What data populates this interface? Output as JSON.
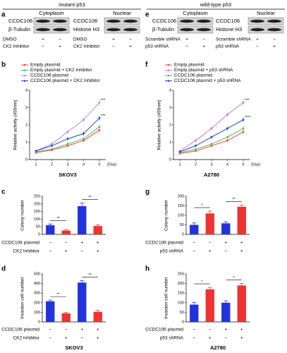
{
  "headers": [
    "mutant p53",
    "wild-type p53"
  ],
  "panel_letters": [
    "a",
    "b",
    "c",
    "d",
    "e",
    "f",
    "g",
    "h"
  ],
  "blots": [
    {
      "fractions": [
        "Cytoplasm",
        "Nuclear"
      ],
      "rows_left": [
        "CCDC106",
        "β-Tubulin"
      ],
      "rows_right": [
        "CCDC106",
        "Histone H3"
      ],
      "treatments": [
        {
          "name": "DMSO",
          "signs": [
            "+",
            "−"
          ]
        },
        {
          "name": "CK2 Inhibitor",
          "signs": [
            "−",
            "+"
          ]
        }
      ]
    },
    {
      "fractions": [
        "Cytoplasm",
        "Nuclear"
      ],
      "rows_left": [
        "CCDC106",
        "β-Tubulin"
      ],
      "rows_right": [
        "CCDC106",
        "Histone H3"
      ],
      "treatments": [
        {
          "name": "Scramble shRNA",
          "signs": [
            "+",
            "−"
          ]
        },
        {
          "name": "p53 shRNA",
          "signs": [
            "−",
            "+"
          ]
        }
      ]
    }
  ],
  "chart_data": [
    {
      "type": "line",
      "title": "SKOV3",
      "y_label": "Relative activity (450nm)",
      "x_label": "(Day)",
      "x": [
        1,
        2,
        3,
        4,
        5
      ],
      "xlim": [
        0.6,
        5.4
      ],
      "xticks": [
        1,
        2,
        3,
        4,
        5
      ],
      "ylim": [
        0,
        4
      ],
      "yticks": [
        0,
        1,
        2,
        3,
        4
      ],
      "series": [
        {
          "name": "Empty plasmid",
          "color": "#ee4444",
          "values": [
            0.4,
            0.55,
            0.8,
            1.1,
            1.7
          ],
          "errors": [
            0.05,
            0.06,
            0.08,
            0.1,
            0.12
          ]
        },
        {
          "name": "Empty plasmid + CK2 Inhibitor",
          "color": "#55bb55",
          "values": [
            0.45,
            0.6,
            0.9,
            1.2,
            1.9
          ],
          "errors": [
            0.05,
            0.06,
            0.08,
            0.1,
            0.12
          ]
        },
        {
          "name": "CCDC106 plasmid",
          "color": "#b08ee8",
          "values": [
            0.5,
            0.9,
            1.6,
            2.3,
            3.3
          ],
          "errors": [
            0.06,
            0.1,
            0.12,
            0.15,
            0.2
          ]
        },
        {
          "name": "CCDC106 plasmid + CK2 Inhibitor",
          "color": "#2244cc",
          "values": [
            0.5,
            0.8,
            1.2,
            1.5,
            2.4
          ],
          "errors": [
            0.05,
            0.08,
            0.1,
            0.12,
            0.15
          ]
        }
      ],
      "annotations": [
        "***",
        "***"
      ]
    },
    {
      "type": "bar",
      "y_label": "Colony number",
      "ylim": [
        0,
        250
      ],
      "yticks": [
        0,
        50,
        100,
        150,
        200,
        250
      ],
      "values": [
        60,
        25,
        185,
        55
      ],
      "errors": [
        8,
        5,
        20,
        8
      ],
      "colors": [
        "#2233dd",
        "#ee3333",
        "#2233dd",
        "#ee3333"
      ],
      "rows": [
        {
          "name": "CCDC106 plasmid",
          "signs": [
            "−",
            "−",
            "+",
            "+"
          ]
        },
        {
          "name": "CK2 Inhibitor",
          "signs": [
            "−",
            "+",
            "−",
            "+"
          ]
        }
      ],
      "significance": [
        {
          "pair": [
            0,
            1
          ],
          "label": "**"
        },
        {
          "pair": [
            2,
            3
          ],
          "label": "**"
        }
      ]
    },
    {
      "type": "bar",
      "title": "SKOV3",
      "y_label": "Invasion cell number",
      "ylim": [
        0,
        500
      ],
      "yticks": [
        0,
        100,
        200,
        300,
        400,
        500
      ],
      "values": [
        215,
        90,
        410,
        105
      ],
      "errors": [
        12,
        8,
        20,
        15
      ],
      "colors": [
        "#2233dd",
        "#ee3333",
        "#2233dd",
        "#ee3333"
      ],
      "rows": [
        {
          "name": "CCDC106 plasmid",
          "signs": [
            "−",
            "−",
            "+",
            "+"
          ]
        },
        {
          "name": "CK2 Inhibitor",
          "signs": [
            "−",
            "+",
            "−",
            "+"
          ]
        }
      ],
      "significance": [
        {
          "pair": [
            0,
            1
          ],
          "label": "**"
        },
        {
          "pair": [
            2,
            3
          ],
          "label": "**"
        }
      ]
    },
    {
      "type": "line",
      "title": "A2780",
      "y_label": "Relative activity (450nm)",
      "x_label": "(Day)",
      "x": [
        1,
        2,
        3,
        4,
        5
      ],
      "xlim": [
        0.6,
        5.4
      ],
      "xticks": [
        1,
        2,
        3,
        4,
        5
      ],
      "ylim": [
        0,
        4
      ],
      "yticks": [
        0,
        1,
        2,
        3,
        4
      ],
      "series": [
        {
          "name": "Empty plasmid",
          "color": "#ee4444",
          "values": [
            0.35,
            0.5,
            0.8,
            1.1,
            1.6
          ],
          "errors": [
            0.05,
            0.06,
            0.08,
            0.1,
            0.12
          ]
        },
        {
          "name": "Empty plasmid + p53 shRNA",
          "color": "#cc77dd",
          "values": [
            0.5,
            1.1,
            1.8,
            2.6,
            3.3
          ],
          "errors": [
            0.06,
            0.1,
            0.12,
            0.15,
            0.2
          ]
        },
        {
          "name": "CCDC106 plasmid",
          "color": "#55bb55",
          "values": [
            0.4,
            0.6,
            0.9,
            1.3,
            1.8
          ],
          "errors": [
            0.05,
            0.06,
            0.08,
            0.1,
            0.12
          ]
        },
        {
          "name": "CCDC106 plasmid + p53 shRNA",
          "color": "#2244cc",
          "values": [
            0.45,
            0.8,
            1.3,
            1.8,
            2.3
          ],
          "errors": [
            0.05,
            0.08,
            0.1,
            0.12,
            0.15
          ]
        }
      ],
      "annotations": [
        "***",
        "****"
      ]
    },
    {
      "type": "bar",
      "y_label": "Colony number",
      "ylim": [
        0,
        200
      ],
      "yticks": [
        0,
        50,
        100,
        150,
        200
      ],
      "values": [
        50,
        110,
        58,
        145
      ],
      "errors": [
        10,
        12,
        8,
        8
      ],
      "colors": [
        "#2233dd",
        "#ee3333",
        "#2233dd",
        "#ee3333"
      ],
      "rows": [
        {
          "name": "CCDC106 plasmid",
          "signs": [
            "−",
            "−",
            "+",
            "+"
          ]
        },
        {
          "name": "p53 shRNA",
          "signs": [
            "−",
            "+",
            "−",
            "+"
          ]
        }
      ],
      "significance": [
        {
          "pair": [
            0,
            1
          ],
          "label": "*"
        },
        {
          "pair": [
            2,
            3
          ],
          "label": "**"
        }
      ]
    },
    {
      "type": "bar",
      "title": "A2780",
      "y_label": "Invasion cell number",
      "ylim": [
        0,
        250
      ],
      "yticks": [
        0,
        50,
        100,
        150,
        200,
        250
      ],
      "values": [
        90,
        170,
        100,
        190
      ],
      "errors": [
        12,
        10,
        10,
        10
      ],
      "colors": [
        "#2233dd",
        "#ee3333",
        "#2233dd",
        "#ee3333"
      ],
      "rows": [
        {
          "name": "CCDC106 plasmid",
          "signs": [
            "−",
            "−",
            "+",
            "+"
          ]
        },
        {
          "name": "p53 shRNA",
          "signs": [
            "−",
            "+",
            "−",
            "+"
          ]
        }
      ],
      "significance": [
        {
          "pair": [
            0,
            1
          ],
          "label": "*"
        },
        {
          "pair": [
            2,
            3
          ],
          "label": "*"
        }
      ]
    }
  ]
}
